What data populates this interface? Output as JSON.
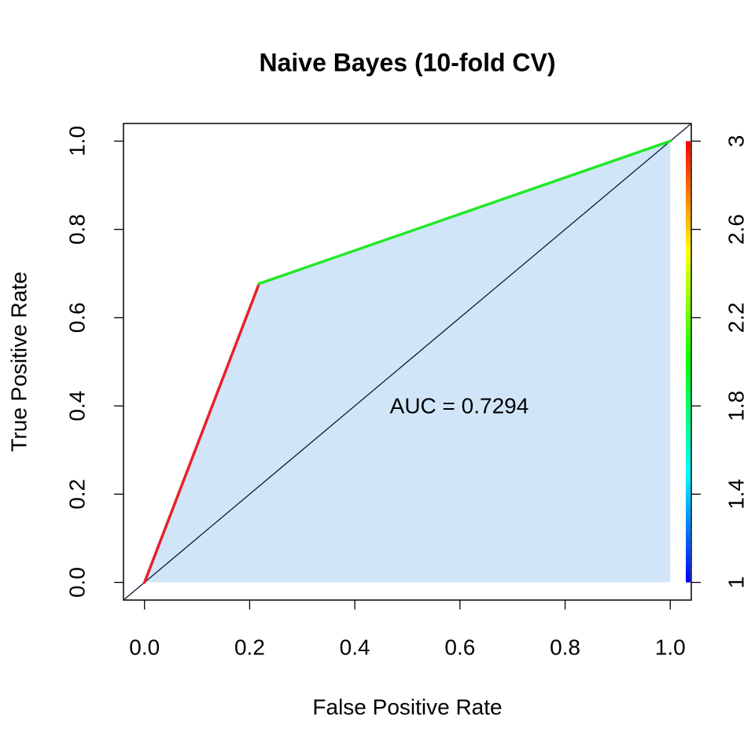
{
  "chart_data": {
    "type": "roc",
    "title": "Naive Bayes (10-fold CV)",
    "x_label": "False Positive Rate",
    "y_label": "True Positive Rate",
    "annotation": "AUC = 0.7294",
    "x": [
      0,
      0.218,
      1
    ],
    "values": [
      0,
      0.677,
      1
    ],
    "segment_colors": [
      "#e8202a",
      "#22e82a"
    ],
    "fill_color": "#d0e6f8",
    "diagonal_color": "#0d1a3a",
    "xlim": [
      -0.04,
      1.04
    ],
    "ylim": [
      -0.04,
      1.04
    ],
    "xticks": [
      {
        "value": 0,
        "label": "0.0"
      },
      0.2,
      0.4,
      0.6,
      0.8,
      {
        "value": 1,
        "label": "1.0"
      }
    ],
    "yticks": [
      {
        "value": 0,
        "label": "0.0"
      },
      0.2,
      0.4,
      0.6,
      0.8,
      {
        "value": 1,
        "label": "1.0"
      }
    ],
    "colorbar": {
      "lim": [
        1,
        3
      ],
      "ticks": [
        1,
        1.4,
        1.8,
        2.2,
        2.6,
        3
      ],
      "colors": [
        "#0000ff",
        "#00ffff",
        "#00ff00",
        "#ffff00",
        "#ff0000"
      ]
    }
  }
}
